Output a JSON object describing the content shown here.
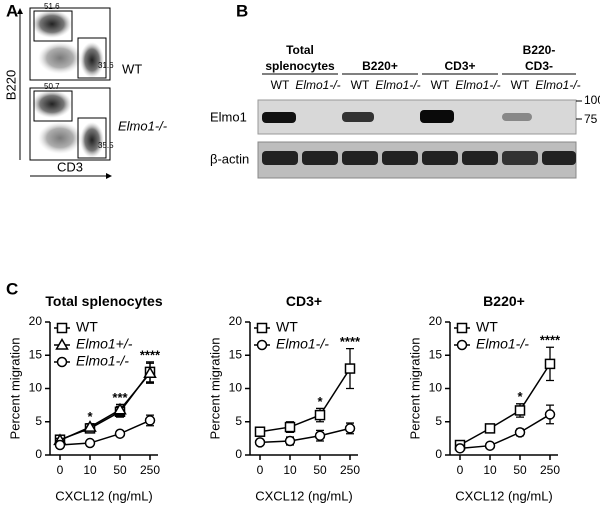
{
  "panel_labels": [
    "A",
    "B",
    "C"
  ],
  "panel_a": {
    "y_axis_label": "B220",
    "x_axis_label": "CD3",
    "plots": [
      {
        "genotype": "WT",
        "upper_gate": "51.6",
        "lower_gate": "31.6"
      },
      {
        "genotype": "Elmo1-/-",
        "upper_gate": "50.7",
        "lower_gate": "35.5"
      }
    ]
  },
  "panel_b": {
    "groups": [
      "Total splenocytes",
      "B220+",
      "CD3+",
      "B220- CD3-"
    ],
    "lanes": [
      "WT",
      "Elmo1-/-"
    ],
    "rows": [
      "Elmo1",
      "β-actin"
    ],
    "markers": [
      "100",
      "75"
    ]
  },
  "chart_data": [
    {
      "type": "line",
      "title": "Total splenocytes",
      "categories": [
        "0",
        "10",
        "50",
        "250"
      ],
      "xlabel": "CXCL12 (ng/mL)",
      "ylabel": "Percent migration",
      "ylim": [
        0,
        20
      ],
      "yticks": [
        0,
        5,
        10,
        15,
        20
      ],
      "series": [
        {
          "name": "WT",
          "color": "#000000",
          "marker": "square",
          "values": [
            2.3,
            4.0,
            6.5,
            12.5
          ],
          "errors": [
            0.3,
            0.5,
            0.8,
            1.5
          ]
        },
        {
          "name": "Elmo1+/-",
          "color": "#000000",
          "marker": "triangle",
          "values": [
            2.2,
            4.2,
            6.8,
            12.3
          ],
          "errors": [
            0.3,
            0.5,
            0.8,
            1.5
          ]
        },
        {
          "name": "Elmo1-/-",
          "color": "#000000",
          "marker": "circle",
          "values": [
            1.5,
            1.8,
            3.2,
            5.2
          ],
          "errors": [
            0.2,
            0.3,
            0.4,
            0.8
          ]
        }
      ],
      "annotations": [
        {
          "text": "*",
          "category": "10"
        },
        {
          "text": "***",
          "category": "50"
        },
        {
          "text": "****",
          "category": "250"
        }
      ]
    },
    {
      "type": "line",
      "title": "CD3+",
      "categories": [
        "0",
        "10",
        "50",
        "250"
      ],
      "xlabel": "CXCL12 (ng/mL)",
      "ylabel": "Percent migration",
      "ylim": [
        0,
        20
      ],
      "yticks": [
        0,
        5,
        10,
        15,
        20
      ],
      "series": [
        {
          "name": "WT",
          "color": "#000000",
          "marker": "square",
          "values": [
            3.5,
            4.2,
            6.0,
            13.0
          ],
          "errors": [
            0.5,
            0.8,
            1.0,
            3.0
          ]
        },
        {
          "name": "Elmo1-/-",
          "color": "#000000",
          "marker": "circle",
          "values": [
            1.9,
            2.1,
            2.9,
            4.0
          ],
          "errors": [
            0.3,
            0.6,
            0.8,
            0.8
          ]
        }
      ],
      "annotations": [
        {
          "text": "*",
          "category": "50"
        },
        {
          "text": "****",
          "category": "250"
        }
      ]
    },
    {
      "type": "line",
      "title": "B220+",
      "categories": [
        "0",
        "10",
        "50",
        "250"
      ],
      "xlabel": "CXCL12 (ng/mL)",
      "ylabel": "Percent migration",
      "ylim": [
        0,
        20
      ],
      "yticks": [
        0,
        5,
        10,
        15,
        20
      ],
      "series": [
        {
          "name": "WT",
          "color": "#000000",
          "marker": "square",
          "values": [
            1.5,
            4.0,
            6.7,
            13.7
          ],
          "errors": [
            0.2,
            0.4,
            1.0,
            2.5
          ]
        },
        {
          "name": "Elmo1-/-",
          "color": "#000000",
          "marker": "circle",
          "values": [
            1.0,
            1.4,
            3.4,
            6.1
          ],
          "errors": [
            0.2,
            0.2,
            0.5,
            1.4
          ]
        }
      ],
      "annotations": [
        {
          "text": "*",
          "category": "50"
        },
        {
          "text": "****",
          "category": "250"
        }
      ]
    }
  ]
}
